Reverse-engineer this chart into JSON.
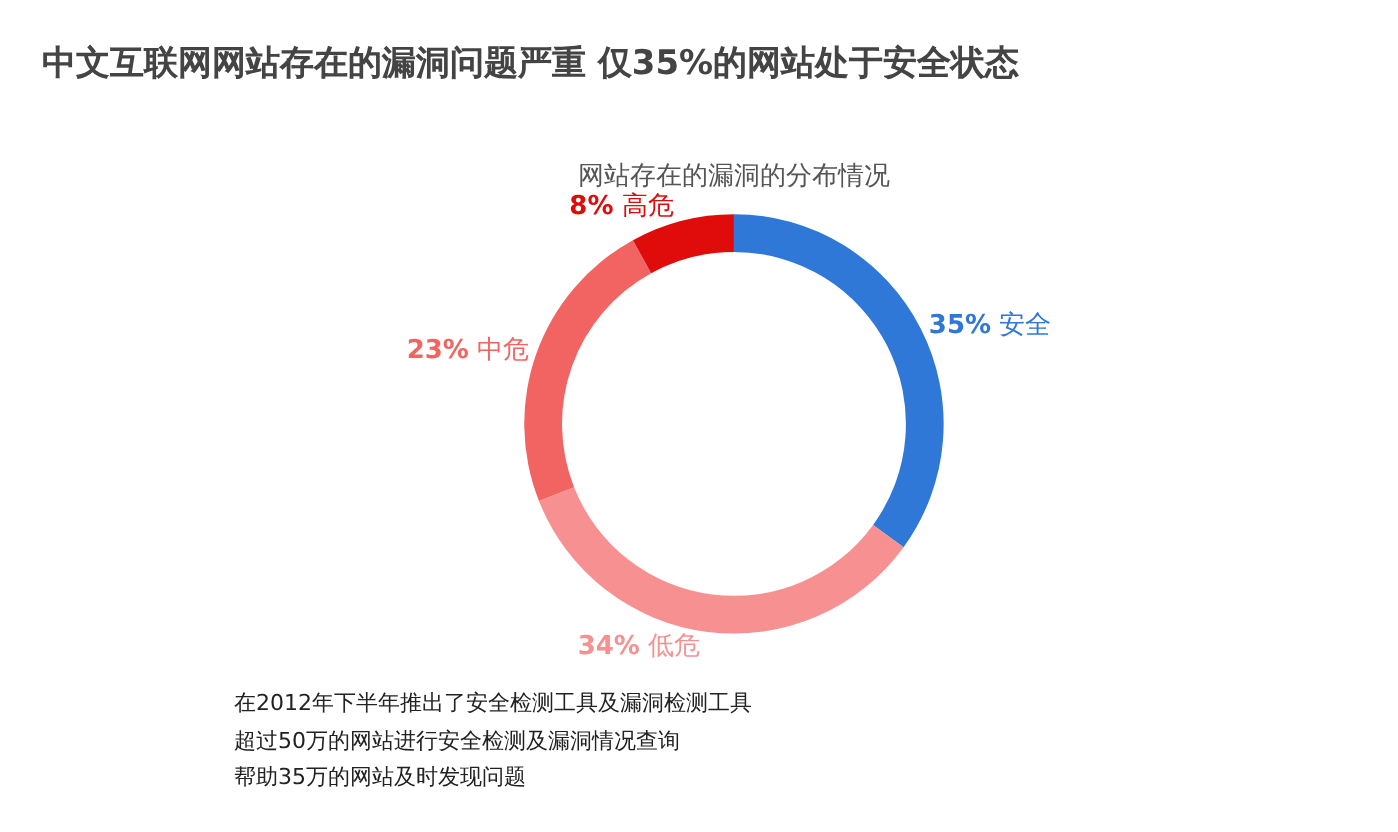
{
  "chart_data": {
    "type": "donut",
    "title": "中文互联网网站存在的漏洞问题严重 仅35%的网站处于安全状态",
    "subtitle": "网站存在的漏洞的分布情况",
    "categories": [
      "安全",
      "低危",
      "中危",
      "高危"
    ],
    "values": [
      35,
      34,
      23,
      8
    ],
    "colors": [
      "#2f78d8",
      "#f79191",
      "#f26461",
      "#e00b0b"
    ],
    "value_labels": [
      "35%",
      "34%",
      "23%",
      "8%"
    ],
    "legend": false,
    "annotations": [
      "在2012年下半年推出了安全检测工具及漏洞检测工具",
      "超过50万的网站进行安全检测及漏洞情况查询",
      "帮助35万的网站及时发现问题"
    ]
  }
}
